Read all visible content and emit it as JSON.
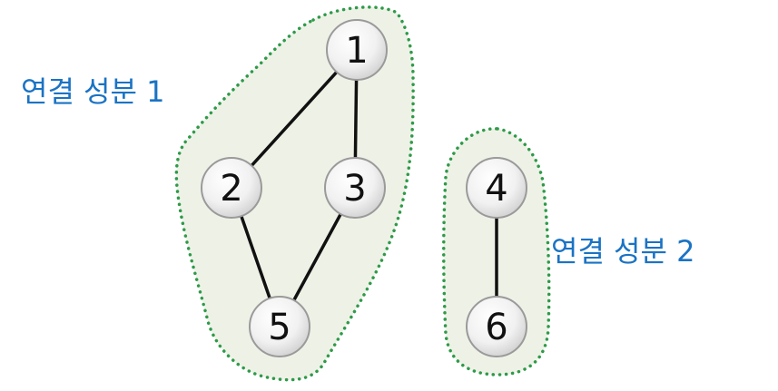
{
  "colors": {
    "label": "#1a73c4",
    "region_fill": "#eef2e6",
    "region_border": "#2e9a49",
    "edge": "#111111",
    "node_stroke": "#9a9a9a"
  },
  "components": [
    {
      "id": "c1",
      "label": "연결 성분 1",
      "nodes": [
        "1",
        "2",
        "3",
        "5"
      ]
    },
    {
      "id": "c2",
      "label": "연결 성분 2",
      "nodes": [
        "4",
        "6"
      ]
    }
  ],
  "nodes": [
    {
      "id": "1",
      "label": "1"
    },
    {
      "id": "2",
      "label": "2"
    },
    {
      "id": "3",
      "label": "3"
    },
    {
      "id": "4",
      "label": "4"
    },
    {
      "id": "5",
      "label": "5"
    },
    {
      "id": "6",
      "label": "6"
    }
  ],
  "edges": [
    {
      "from": "1",
      "to": "2"
    },
    {
      "from": "1",
      "to": "3"
    },
    {
      "from": "2",
      "to": "5"
    },
    {
      "from": "3",
      "to": "5"
    },
    {
      "from": "4",
      "to": "6"
    }
  ]
}
